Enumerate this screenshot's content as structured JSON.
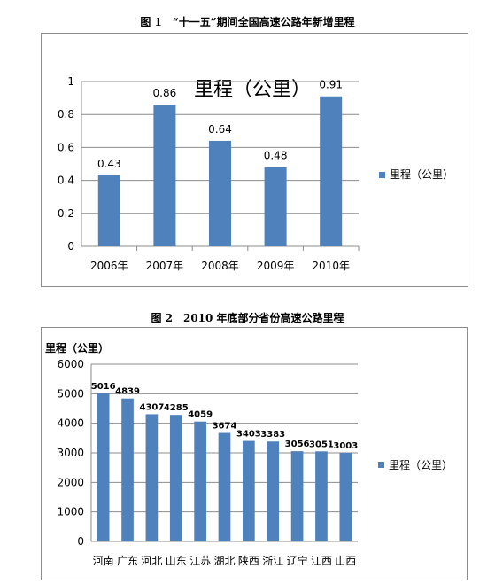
{
  "figure1": {
    "caption": "图 1　“十一五”期间全国高速公路年新增里程",
    "chart_data": {
      "type": "bar",
      "title": "里程（公里）",
      "categories": [
        "2006年",
        "2007年",
        "2008年",
        "2009年",
        "2010年"
      ],
      "series": [
        {
          "name": "里程（公里）",
          "values": [
            0.43,
            0.86,
            0.64,
            0.48,
            0.91
          ],
          "color": "#4f81bd"
        }
      ],
      "data_labels": [
        "0.43",
        "0.86",
        "0.64",
        "0.48",
        "0.91"
      ],
      "y_ticks": [
        "0",
        "0.2",
        "0.4",
        "0.6",
        "0.8",
        "1"
      ],
      "ylim": [
        0,
        1
      ],
      "grid": true,
      "legend_position": "right"
    }
  },
  "figure2": {
    "caption": "图 2　2010 年底部分省份高速公路里程",
    "chart_data": {
      "type": "bar",
      "title": "",
      "ylabel": "里程（公里）",
      "categories": [
        "河南",
        "广东",
        "河北",
        "山东",
        "江苏",
        "湖北",
        "陕西",
        "浙江",
        "辽宁",
        "江西",
        "山西"
      ],
      "series": [
        {
          "name": "里程（公里）",
          "values": [
            5016,
            4839,
            4307,
            4285,
            4059,
            3674,
            3403,
            3383,
            3056,
            3051,
            3003
          ],
          "color": "#4f81bd"
        }
      ],
      "data_labels": [
        "5016",
        "4839",
        "4307",
        "4285",
        "4059",
        "3674",
        "3403",
        "3383",
        "3056",
        "3051",
        "3003"
      ],
      "y_ticks": [
        "0",
        "1000",
        "2000",
        "3000",
        "4000",
        "5000",
        "6000"
      ],
      "ylim": [
        0,
        6000
      ],
      "grid": true,
      "legend_position": "right"
    }
  }
}
